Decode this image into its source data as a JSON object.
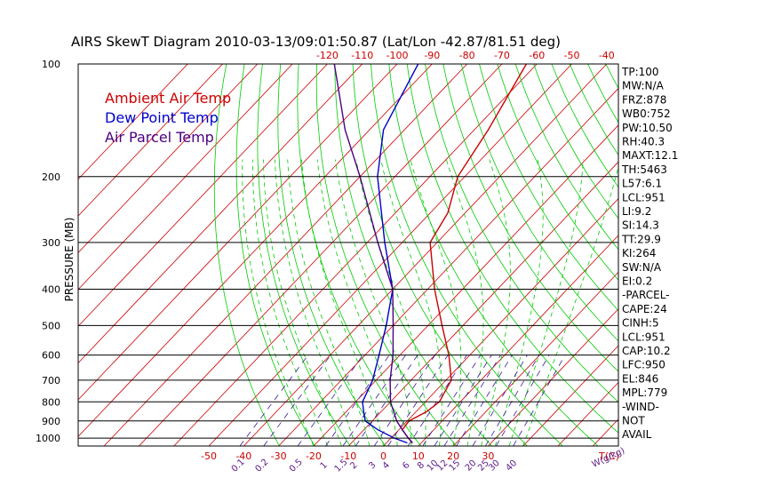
{
  "chart_data": {
    "type": "line",
    "title": "AIRS SkewT Diagram 2010-03-13/09:01:50.87 (Lat/Lon -42.87/81.51 deg)",
    "ylabel": "PRESSURE (MB)",
    "xlabel": "T(C)",
    "mixing_ratio_label": "W(g/kg)",
    "pressure_ticks": [
      "100",
      "200",
      "300",
      "400",
      "500",
      "600",
      "700",
      "800",
      "900",
      "1000"
    ],
    "pressure_tick_values": [
      100,
      200,
      300,
      400,
      500,
      600,
      700,
      800,
      900,
      1000
    ],
    "top_temp_ticks": [
      "-120",
      "-110",
      "-100",
      "-90",
      "-80",
      "-70",
      "-60",
      "-50",
      "-40"
    ],
    "top_temp_values": [
      -120,
      -110,
      -100,
      -90,
      -80,
      -70,
      -60,
      -50,
      -40
    ],
    "bottom_temp_ticks": [
      "-50",
      "-40",
      "-30",
      "-20",
      "-10",
      "0",
      "10",
      "20",
      "30"
    ],
    "bottom_temp_values": [
      -50,
      -40,
      -30,
      -20,
      -10,
      0,
      10,
      20,
      30
    ],
    "mixing_ratio_ticks": [
      "0.1",
      "0.2",
      "0.5",
      "1",
      "1.5",
      "2",
      "3",
      "4",
      "6",
      "8",
      "10",
      "12",
      "15",
      "20",
      "25",
      "30",
      "40"
    ],
    "mixing_ratio_values": [
      0.1,
      0.2,
      0.5,
      1,
      1.5,
      2,
      3,
      4,
      6,
      8,
      10,
      12,
      15,
      20,
      25,
      30,
      40
    ],
    "pressure_range": [
      100,
      1050
    ],
    "grid": true,
    "legend_position": "top-left",
    "series": [
      {
        "name": "Ambient Air Temp",
        "color": "#cc0000",
        "points": [
          {
            "p": 1030,
            "t": 7.5
          },
          {
            "p": 1000,
            "t": 5
          },
          {
            "p": 950,
            "t": 1
          },
          {
            "p": 900,
            "t": 0.5
          },
          {
            "p": 850,
            "t": 3
          },
          {
            "p": 800,
            "t": 4
          },
          {
            "p": 700,
            "t": 1.5
          },
          {
            "p": 600,
            "t": -6
          },
          {
            "p": 500,
            "t": -16
          },
          {
            "p": 400,
            "t": -28
          },
          {
            "p": 300,
            "t": -42
          },
          {
            "p": 250,
            "t": -45
          },
          {
            "p": 200,
            "t": -52
          },
          {
            "p": 150,
            "t": -56
          },
          {
            "p": 100,
            "t": -63
          }
        ]
      },
      {
        "name": "Dew Point Temp",
        "color": "#0000cc",
        "points": [
          {
            "p": 1030,
            "t": 6
          },
          {
            "p": 1000,
            "t": 1
          },
          {
            "p": 950,
            "t": -6
          },
          {
            "p": 900,
            "t": -12
          },
          {
            "p": 850,
            "t": -15
          },
          {
            "p": 800,
            "t": -18
          },
          {
            "p": 700,
            "t": -21
          },
          {
            "p": 600,
            "t": -26
          },
          {
            "p": 500,
            "t": -32
          },
          {
            "p": 400,
            "t": -40
          },
          {
            "p": 300,
            "t": -55
          },
          {
            "p": 200,
            "t": -75
          },
          {
            "p": 150,
            "t": -86
          },
          {
            "p": 100,
            "t": -94
          }
        ]
      },
      {
        "name": "Air Parcel Temp",
        "color": "#4b0082",
        "points": [
          {
            "p": 1030,
            "t": 7.5
          },
          {
            "p": 1000,
            "t": 5
          },
          {
            "p": 950,
            "t": 1
          },
          {
            "p": 900,
            "t": -3
          },
          {
            "p": 800,
            "t": -10
          },
          {
            "p": 700,
            "t": -16
          },
          {
            "p": 600,
            "t": -22
          },
          {
            "p": 500,
            "t": -30
          },
          {
            "p": 400,
            "t": -40
          },
          {
            "p": 300,
            "t": -57
          },
          {
            "p": 200,
            "t": -80
          },
          {
            "p": 150,
            "t": -97
          },
          {
            "p": 100,
            "t": -118
          }
        ]
      }
    ],
    "indices": [
      "TP:100",
      "MW:N/A",
      "FRZ:878",
      "WB0:752",
      "PW:10.50",
      "RH:40.3",
      "MAXT:12.1",
      "TH:5463",
      "L57:6.1",
      "LCL:951",
      "LI:9.2",
      "SI:14.3",
      "TT:29.9",
      "KI:264",
      "SW:N/A",
      "EI:0.2",
      "-PARCEL-",
      "CAPE:24",
      "CINH:5",
      "LCL:951",
      "CAP:10.2",
      "LFC:950",
      "EL:846",
      "MPL:779",
      "-WIND-",
      "NOT",
      "AVAIL"
    ]
  },
  "colors": {
    "isotherm": "#cc0000",
    "dry_adiabat": "#00cc00",
    "moist_adiabat": "#00cc00",
    "mixing_ratio": "#3a1a9a",
    "isobar": "#000000"
  }
}
